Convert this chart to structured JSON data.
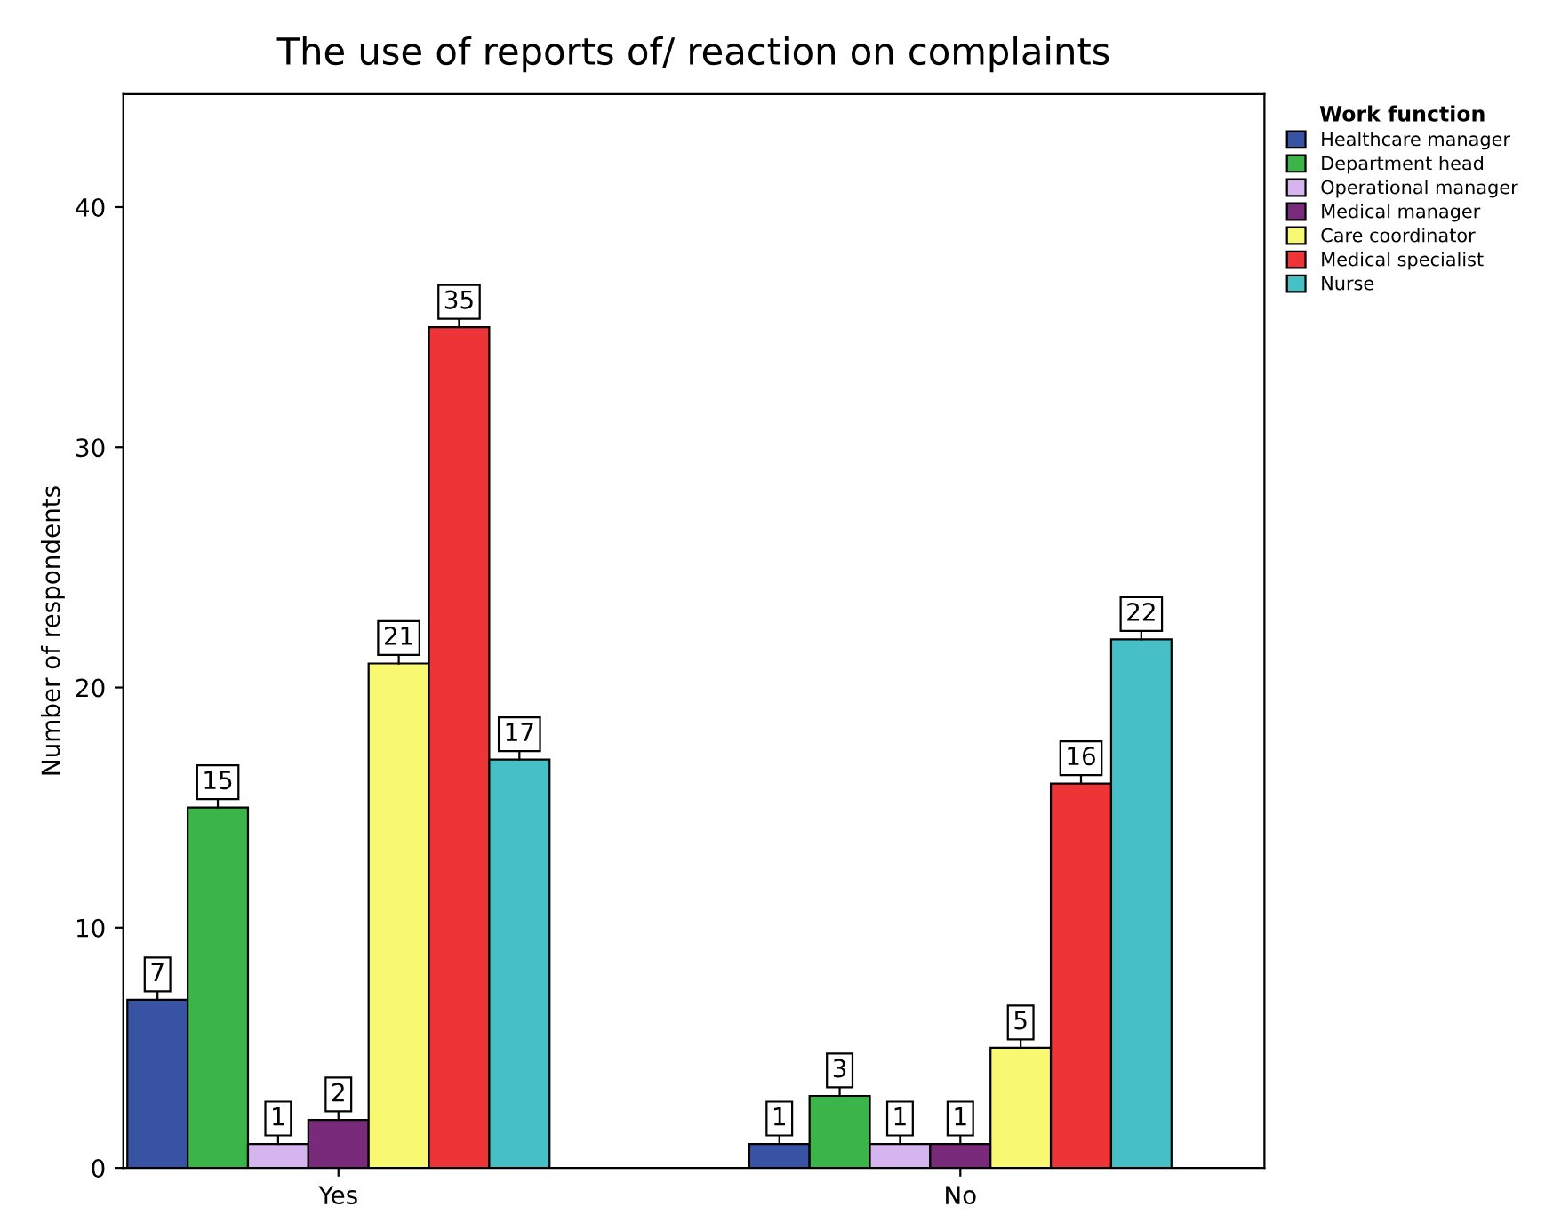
{
  "chart_data": {
    "type": "bar",
    "title": "The use of reports of/ reaction on complaints",
    "ylabel": "Number of respondents",
    "legend_title": "Work function",
    "categories": [
      "Yes",
      "No"
    ],
    "series": [
      {
        "name": "Healthcare manager",
        "color": "#3953a4",
        "values": [
          7,
          1
        ]
      },
      {
        "name": "Department head",
        "color": "#3bb44a",
        "values": [
          15,
          3
        ]
      },
      {
        "name": "Operational manager",
        "color": "#d6b4f0",
        "values": [
          1,
          1
        ]
      },
      {
        "name": "Medical manager",
        "color": "#7a2a7a",
        "values": [
          2,
          1
        ]
      },
      {
        "name": "Care coordinator",
        "color": "#f9f871",
        "values": [
          21,
          5
        ]
      },
      {
        "name": "Medical specialist",
        "color": "#ef3437",
        "values": [
          35,
          16
        ]
      },
      {
        "name": "Nurse",
        "color": "#46c0c6",
        "values": [
          17,
          22
        ]
      }
    ],
    "ylim": [
      0,
      44.7
    ],
    "yticks": [
      0,
      10,
      20,
      30,
      40
    ],
    "data_labels": true,
    "grid": false,
    "legend": "right"
  }
}
